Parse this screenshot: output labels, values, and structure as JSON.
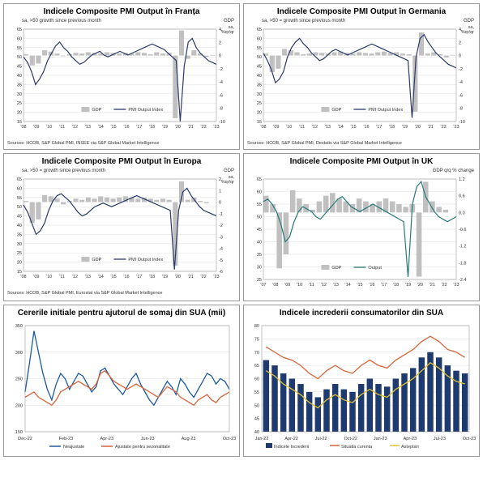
{
  "panels": [
    {
      "title": "Indicele Composite PMI Output în Franța",
      "sub_left": "sa, >50 growth since previous month",
      "sub_right": "GDP",
      "sub_right2": "sa, %qr/qr",
      "source": "Sources: HCOB, S&P Global PMI, INSEE via S&P Global Market Intelligence",
      "y_left": {
        "min": 15,
        "max": 65,
        "step": 5
      },
      "y_right": {
        "min": -10,
        "max": 4,
        "step": 2
      },
      "x_labels": [
        "'08",
        "'09",
        "'10",
        "'11",
        "'12",
        "'13",
        "'14",
        "'15",
        "'16",
        "'17",
        "'18",
        "'19",
        "'20",
        "'21",
        "'22",
        "'23"
      ],
      "bar_color": "#c0c0c0",
      "line_color": "#2a3a6a",
      "legend": [
        {
          "t": "bar",
          "c": "#c0c0c0",
          "l": "GDP"
        },
        {
          "t": "line",
          "c": "#2a3a6a",
          "l": "PMI Output Index"
        }
      ],
      "bars": [
        0.2,
        -1.5,
        -1.2,
        0.8,
        0.6,
        0.3,
        -0.1,
        0.2,
        0.4,
        0.3,
        0.5,
        0.4,
        0.3,
        0.5,
        0.4,
        0.3,
        0.4,
        0.3,
        0.5,
        0.4,
        0.2,
        0.5,
        0.3,
        0.4,
        -9.5,
        3.8,
        -0.5,
        0.8,
        0.3,
        -0.2,
        0.1
      ],
      "line": [
        50,
        47,
        42,
        35,
        38,
        42,
        48,
        52,
        56,
        58,
        55,
        53,
        50,
        48,
        46,
        47,
        49,
        51,
        52,
        53,
        51,
        50,
        51,
        52,
        53,
        52,
        51,
        52,
        53,
        54,
        55,
        56,
        57,
        56,
        55,
        54,
        52,
        50,
        48,
        15,
        45,
        58,
        60,
        55,
        52,
        50,
        48,
        47,
        46
      ]
    },
    {
      "title": "Indicele Composite PMI Output în Germania",
      "sub_left": "sa, >50 = growth since previous month",
      "sub_right": "GDP",
      "sub_right2": "sa, %qr/qr",
      "source": "Sources: HCOB, S&P Global PMI, Destatis via S&P Global Market Intelligence",
      "y_left": {
        "min": 15,
        "max": 65,
        "step": 5
      },
      "y_right": {
        "min": -10.0,
        "max": 4.0,
        "step": 2.0
      },
      "x_labels": [
        "'08",
        "'09",
        "'10",
        "'11",
        "'12",
        "'13",
        "'14",
        "'15",
        "'16",
        "'17",
        "'18",
        "'19",
        "'20",
        "'21",
        "'22",
        "'23"
      ],
      "bar_color": "#c0c0c0",
      "line_color": "#2a3a6a",
      "legend": [
        {
          "t": "bar",
          "c": "#c0c0c0",
          "l": "GDP"
        },
        {
          "t": "line",
          "c": "#2a3a6a",
          "l": "PMI Output Index"
        }
      ],
      "bars": [
        0.3,
        -2.5,
        -2.0,
        1.0,
        0.8,
        0.5,
        0.2,
        0.3,
        0.5,
        0.4,
        0.3,
        0.5,
        0.6,
        0.4,
        0.3,
        0.5,
        0.4,
        0.3,
        0.5,
        0.6,
        0.4,
        0.5,
        0.3,
        0.2,
        -8.5,
        3.5,
        0.3,
        0.5,
        0.2,
        -0.3,
        0.1
      ],
      "line": [
        52,
        48,
        43,
        36,
        38,
        42,
        50,
        55,
        58,
        60,
        57,
        55,
        52,
        50,
        48,
        49,
        51,
        53,
        54,
        53,
        52,
        51,
        52,
        53,
        54,
        55,
        56,
        57,
        56,
        55,
        54,
        53,
        52,
        51,
        50,
        49,
        48,
        17,
        50,
        60,
        62,
        58,
        55,
        52,
        50,
        48,
        46,
        45,
        44
      ]
    },
    {
      "title": "Indicele Composite PMI Output în Europa",
      "sub_left": "sa, >50 = growth since previous month",
      "sub_right": "GDP",
      "sub_right2": "sa, %qr/qr",
      "source": "Sources: HCOB, S&P Global PMI, Eurostat via S&P Global Market Intelligence",
      "y_left": {
        "min": 15,
        "max": 65,
        "step": 5
      },
      "y_right": {
        "min": -6,
        "max": 2,
        "step": 1
      },
      "x_labels": [
        "'08",
        "'09",
        "'10",
        "'11",
        "'12",
        "'13",
        "'14",
        "'15",
        "'16",
        "'17",
        "'18",
        "'19",
        "'20",
        "'21",
        "'22",
        "'23"
      ],
      "bar_color": "#c0c0c0",
      "line_color": "#2a3a6a",
      "legend": [
        {
          "t": "bar",
          "c": "#c0c0c0",
          "l": "GDP"
        },
        {
          "t": "line",
          "c": "#2a3a6a",
          "l": "PMI Output Index"
        }
      ],
      "bars": [
        0.1,
        -1.8,
        -1.5,
        0.6,
        0.5,
        0.3,
        -0.2,
        0.1,
        0.3,
        0.2,
        0.4,
        0.3,
        0.5,
        0.4,
        0.3,
        0.4,
        0.5,
        0.4,
        0.3,
        0.4,
        0.3,
        0.2,
        0.3,
        0.2,
        -5.5,
        1.8,
        0.2,
        0.4,
        0.1,
        -0.1,
        0.0
      ],
      "line": [
        51,
        47,
        41,
        35,
        37,
        41,
        48,
        53,
        56,
        57,
        55,
        53,
        50,
        47,
        45,
        46,
        48,
        50,
        51,
        52,
        51,
        50,
        51,
        52,
        53,
        54,
        55,
        56,
        55,
        54,
        53,
        52,
        51,
        50,
        49,
        48,
        16,
        48,
        58,
        60,
        56,
        53,
        50,
        48,
        47,
        46,
        45
      ]
    },
    {
      "title": "Indicele Composite PMI Output în UK",
      "sub_left": "",
      "sub_right": "GDP q/q % change",
      "sub_right2": "",
      "source": "",
      "y_left": {
        "min": 25,
        "max": 65,
        "step": 5
      },
      "y_right": {
        "min": -2.4,
        "max": 1.2,
        "step": 0.6
      },
      "x_labels": [
        "'07",
        "'08",
        "'09",
        "'10",
        "'11",
        "'12",
        "'13",
        "'14",
        "'15",
        "'16",
        "'17",
        "'18",
        "'19",
        "'20",
        "'21",
        "'22",
        "'23"
      ],
      "bar_color": "#c0c0c0",
      "line_color": "#2a7a7a",
      "legend": [
        {
          "t": "bar",
          "c": "#c0c0c0",
          "l": "GDP"
        },
        {
          "t": "line",
          "c": "#2a7a7a",
          "l": "Output"
        }
      ],
      "bars": [
        0.6,
        0.3,
        -2.0,
        -1.5,
        0.8,
        0.5,
        0.3,
        0.1,
        0.4,
        0.6,
        0.7,
        0.5,
        0.4,
        0.3,
        0.5,
        0.4,
        0.3,
        0.4,
        0.5,
        0.4,
        0.3,
        0.2,
        0.3,
        -2.3,
        1.1,
        0.4,
        0.2,
        0.1,
        0.0
      ],
      "line": [
        56,
        57,
        55,
        52,
        47,
        40,
        42,
        48,
        52,
        54,
        53,
        52,
        50,
        49,
        51,
        53,
        55,
        57,
        58,
        56,
        54,
        53,
        52,
        53,
        54,
        55,
        54,
        53,
        52,
        51,
        50,
        49,
        48,
        26,
        55,
        62,
        64,
        58,
        55,
        52,
        50,
        49,
        48,
        49,
        50
      ]
    }
  ],
  "panel5": {
    "title": "Cererile initiale pentru ajutorul de somaj din SUA (mii)",
    "y": {
      "min": 150,
      "max": 350,
      "step": 50
    },
    "x_labels": [
      "Dec-22",
      "Feb-23",
      "Apr-23",
      "Jun-23",
      "Aug-23",
      "Oct-23"
    ],
    "line1_color": "#1e5aa0",
    "line2_color": "#d9643a",
    "legend": [
      {
        "c": "#1e5aa0",
        "l": "Neajustate"
      },
      {
        "c": "#d9643a",
        "l": "Ajustate pentru sezonalitate"
      }
    ],
    "line1": [
      225,
      280,
      340,
      300,
      260,
      230,
      210,
      240,
      260,
      250,
      230,
      245,
      260,
      255,
      240,
      225,
      235,
      265,
      270,
      255,
      240,
      230,
      220,
      235,
      250,
      260,
      240,
      225,
      210,
      200,
      215,
      230,
      245,
      235,
      220,
      250,
      240,
      225,
      215,
      230,
      245,
      260,
      255,
      240,
      250,
      245,
      230
    ],
    "line2": [
      215,
      220,
      225,
      215,
      210,
      205,
      200,
      210,
      225,
      230,
      235,
      240,
      245,
      240,
      235,
      230,
      240,
      260,
      265,
      255,
      245,
      240,
      235,
      230,
      235,
      240,
      235,
      230,
      225,
      220,
      215,
      225,
      235,
      230,
      225,
      215,
      210,
      205,
      200,
      210,
      215,
      220,
      210,
      205,
      215,
      220,
      225
    ]
  },
  "panel6": {
    "title": "Indicele increderii consumatorilor din SUA",
    "y": {
      "min": 40,
      "max": 80,
      "step": 5
    },
    "x_labels": [
      "Jan-22",
      "Apr-22",
      "Jul-22",
      "Oct-22",
      "Jan-23",
      "Apr-23",
      "Jul-23",
      "Oct-23"
    ],
    "bar_color": "#1e3a6e",
    "line1_color": "#d9643a",
    "line2_color": "#e0c030",
    "legend": [
      {
        "t": "bar",
        "c": "#1e3a6e",
        "l": "Indicele Increderii"
      },
      {
        "t": "line",
        "c": "#d9643a",
        "l": "Situatia curenta"
      },
      {
        "t": "line",
        "c": "#e0c030",
        "l": "Asteptari"
      }
    ],
    "bars": [
      67,
      65,
      62,
      60,
      58,
      55,
      53,
      56,
      58,
      56,
      55,
      58,
      60,
      58,
      57,
      60,
      62,
      64,
      68,
      70,
      68,
      65,
      63,
      62
    ],
    "line1": [
      72,
      70,
      68,
      67,
      65,
      62,
      60,
      63,
      65,
      63,
      62,
      65,
      67,
      65,
      64,
      67,
      69,
      71,
      74,
      76,
      74,
      71,
      70,
      68
    ],
    "line2": [
      63,
      61,
      58,
      56,
      54,
      51,
      49,
      52,
      54,
      52,
      51,
      54,
      56,
      54,
      53,
      56,
      58,
      60,
      63,
      66,
      64,
      61,
      59,
      58
    ]
  }
}
